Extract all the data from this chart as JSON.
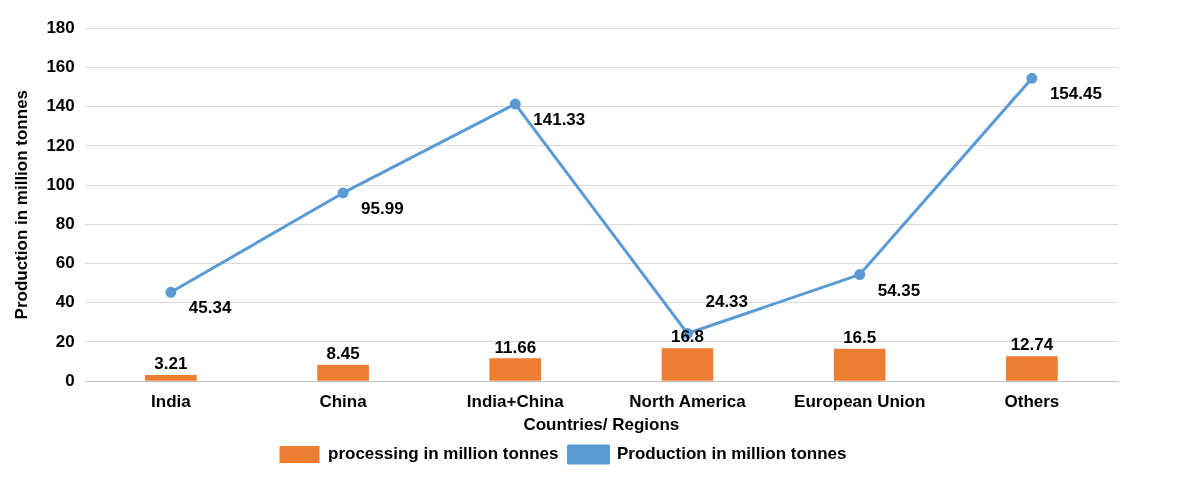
{
  "chart_data": {
    "type": "bar",
    "xlabel": "Countries/ Regions",
    "ylabel": "Production in million tonnes",
    "categories": [
      "India",
      "China",
      "India+China",
      "North America",
      "European Union",
      "Others"
    ],
    "series": [
      {
        "name": "processing in million tonnes",
        "color": "#ed7d31",
        "values": [
          3.21,
          8.45,
          11.66,
          16.8,
          16.5,
          12.74
        ]
      },
      {
        "name": "Production in million tonnes",
        "type": "line",
        "color": "#5b9bd5",
        "values": [
          45.34,
          95.99,
          141.33,
          24.33,
          54.35,
          154.45
        ]
      }
    ],
    "ylim": [
      0,
      180
    ],
    "yticks": [
      0,
      20,
      40,
      60,
      80,
      100,
      120,
      140,
      160,
      180
    ],
    "grid": "y",
    "legend": "bottom",
    "data_labels": true,
    "marker": "circle",
    "line_style": "solid"
  }
}
